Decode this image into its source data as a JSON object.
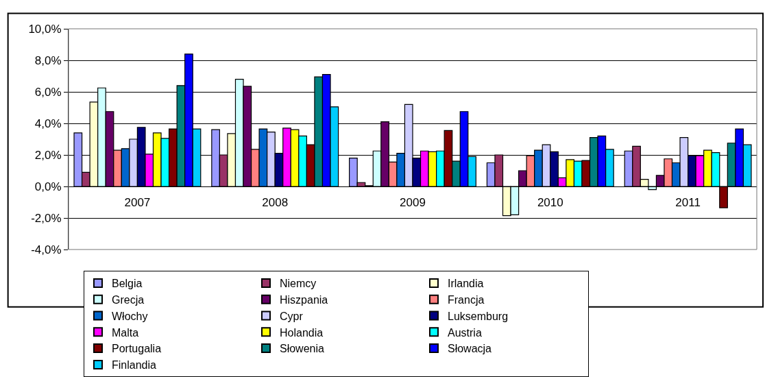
{
  "chart_data": {
    "type": "bar",
    "categories": [
      "2007",
      "2008",
      "2009",
      "2010",
      "2011"
    ],
    "series": [
      {
        "name": "Belgia",
        "color": "#9999ff",
        "values": [
          3.4,
          3.6,
          1.8,
          1.5,
          2.25
        ]
      },
      {
        "name": "Niemcy",
        "color": "#993366",
        "values": [
          0.9,
          2.0,
          0.25,
          2.0,
          2.55
        ]
      },
      {
        "name": "Irlandia",
        "color": "#ffffcc",
        "values": [
          5.35,
          3.35,
          0.05,
          -1.85,
          0.45
        ]
      },
      {
        "name": "Grecja",
        "color": "#ccffff",
        "values": [
          6.25,
          6.8,
          2.25,
          -1.8,
          -0.2
        ]
      },
      {
        "name": "Hiszpania",
        "color": "#660066",
        "values": [
          4.75,
          6.35,
          4.1,
          1.0,
          0.7
        ]
      },
      {
        "name": "Francja",
        "color": "#ff8080",
        "values": [
          2.3,
          2.35,
          1.55,
          1.95,
          1.75
        ]
      },
      {
        "name": "Włochy",
        "color": "#0066cc",
        "values": [
          2.4,
          3.65,
          2.1,
          2.3,
          1.5
        ]
      },
      {
        "name": "Cypr",
        "color": "#ccccff",
        "values": [
          3.0,
          3.45,
          5.2,
          2.65,
          3.1
        ]
      },
      {
        "name": "Luksemburg",
        "color": "#000080",
        "values": [
          3.75,
          2.1,
          1.8,
          2.2,
          1.95
        ]
      },
      {
        "name": "Malta",
        "color": "#ff00ff",
        "values": [
          2.05,
          3.7,
          2.25,
          0.55,
          1.95
        ]
      },
      {
        "name": "Holandia",
        "color": "#ffff00",
        "values": [
          3.4,
          3.6,
          2.2,
          1.7,
          2.3
        ]
      },
      {
        "name": "Austria",
        "color": "#00ffff",
        "values": [
          3.05,
          3.2,
          2.25,
          1.6,
          2.15
        ]
      },
      {
        "name": "Portugalia",
        "color": "#800000",
        "values": [
          3.65,
          2.65,
          3.55,
          1.65,
          -1.35
        ]
      },
      {
        "name": "Słowenia",
        "color": "#008080",
        "values": [
          6.4,
          6.95,
          1.6,
          3.1,
          2.75
        ]
      },
      {
        "name": "Słowacja",
        "color": "#0000ff",
        "values": [
          8.4,
          7.1,
          4.75,
          3.2,
          3.65
        ]
      },
      {
        "name": "Finlandia",
        "color": "#00ccff",
        "values": [
          3.65,
          5.05,
          1.9,
          2.35,
          2.65
        ]
      }
    ],
    "ylim": [
      -4,
      10
    ],
    "yticks": [
      {
        "value": -4,
        "label": "-4,0%"
      },
      {
        "value": -2,
        "label": "-2,0%"
      },
      {
        "value": 0,
        "label": "0,0%"
      },
      {
        "value": 2,
        "label": "2,0%"
      },
      {
        "value": 4,
        "label": "4,0%"
      },
      {
        "value": 6,
        "label": "6,0%"
      },
      {
        "value": 8,
        "label": "8,0%"
      },
      {
        "value": 10,
        "label": "10,0%"
      }
    ],
    "grid": "y",
    "legend": "bottom"
  }
}
